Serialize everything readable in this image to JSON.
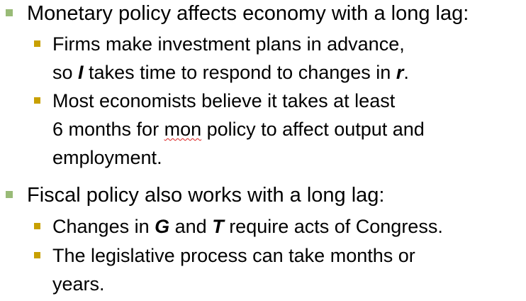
{
  "bullets": [
    {
      "text": "Monetary policy affects economy with a long lag:",
      "sub": [
        {
          "line1": "Firms make investment plans in advance,",
          "line2_pre": "so ",
          "line2_var": "I",
          "line2_mid": " takes time to respond to changes in ",
          "line2_var2": "r",
          "line2_end": "."
        },
        {
          "line1": "Most economists believe it takes at least",
          "line2_pre": "6 months for ",
          "line2_mark": "mon",
          "line2_post": " policy to affect output and",
          "line3": "employment."
        }
      ]
    },
    {
      "text": "Fiscal policy also works with a long lag:",
      "sub": [
        {
          "pre": "Changes in ",
          "var1": "G",
          "mid": " and ",
          "var2": "T",
          "post": " require acts of Congress."
        },
        {
          "line1": "The legislative process can take months or",
          "line2": "years."
        }
      ]
    }
  ],
  "colors": {
    "level1_marker": "#99bb77",
    "level2_marker": "#c8a000",
    "spell_underline": "#d22"
  }
}
